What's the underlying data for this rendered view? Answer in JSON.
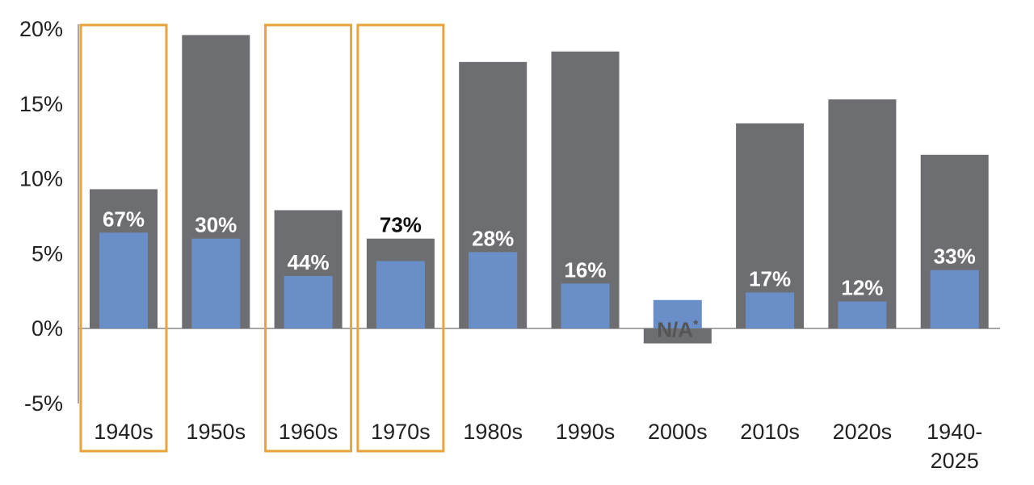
{
  "chart_data": {
    "type": "bar",
    "categories": [
      "1940s",
      "1950s",
      "1960s",
      "1970s",
      "1980s",
      "1990s",
      "2000s",
      "2010s",
      "2020s",
      "1940-2025"
    ],
    "series": [
      {
        "values": [
          9.3,
          19.6,
          7.9,
          6.0,
          17.8,
          18.5,
          -1.0,
          13.7,
          15.3,
          11.6
        ]
      },
      {
        "values": [
          6.4,
          6.0,
          3.5,
          4.5,
          5.1,
          3.0,
          1.9,
          2.4,
          1.8,
          3.9
        ]
      }
    ],
    "data_labels": [
      "67%",
      "30%",
      "44%",
      "73%",
      "28%",
      "16%",
      "N/A*",
      "17%",
      "12%",
      "33%"
    ],
    "highlighted": [
      "1940s",
      "1960s",
      "1970s"
    ],
    "yticks": [
      "20%",
      "15%",
      "10%",
      "5%",
      "0%",
      "-5%"
    ],
    "ylim": [
      -5,
      20
    ],
    "colors": {
      "series1": "#6d6e71",
      "series2": "#6a8fc8",
      "highlight": "#e8a33a",
      "axis": "#888888"
    }
  }
}
